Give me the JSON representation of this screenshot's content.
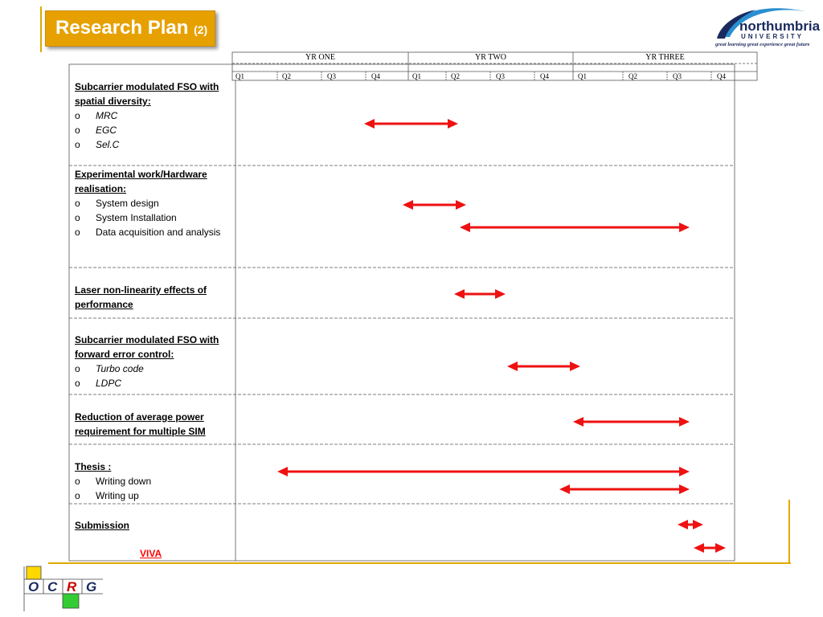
{
  "title": {
    "main": "Research Plan",
    "suffix": "(2)"
  },
  "logo": {
    "name": "northumbria",
    "subtitle": "UNIVERSITY",
    "tagline": "great learning  great experience  great future"
  },
  "bottom_logo": {
    "letters": [
      "O",
      "C",
      "R",
      "G"
    ]
  },
  "years": [
    "YR ONE",
    "YR TWO",
    "YR THREE"
  ],
  "quarters": [
    "Q1",
    "Q2",
    "Q3",
    "Q4",
    "Q1",
    "Q2",
    "Q3",
    "Q4",
    "Q1",
    "Q2",
    "Q3",
    "Q4"
  ],
  "tasks": [
    {
      "heading": "Subcarrier modulated FSO with spatial diversity:",
      "items": [
        "MRC",
        "EGC",
        "Sel.C"
      ],
      "items_italic": true
    },
    {
      "heading": "Experimental work/Hardware realisation:",
      "items": [
        "System design",
        "System Installation",
        "Data acquisition and analysis"
      ],
      "items_italic": false
    },
    {
      "heading": "Laser non-linearity effects of performance",
      "items": [],
      "items_italic": false
    },
    {
      "heading": "Subcarrier modulated FSO with forward error control:",
      "items": [
        "Turbo code",
        "LDPC"
      ],
      "items_italic": true
    },
    {
      "heading": "Reduction of average power requirement for multiple SIM",
      "items": [],
      "items_italic": false
    },
    {
      "heading": "Thesis :",
      "items": [
        "Writing down",
        "Writing up"
      ],
      "items_italic": false
    },
    {
      "heading": "Submission",
      "items": [],
      "items_italic": false
    }
  ],
  "bullet_symbol": "o",
  "viva_label": "VIVA",
  "arrow_color": "#ee1111",
  "accent_color": "#e6a100"
}
